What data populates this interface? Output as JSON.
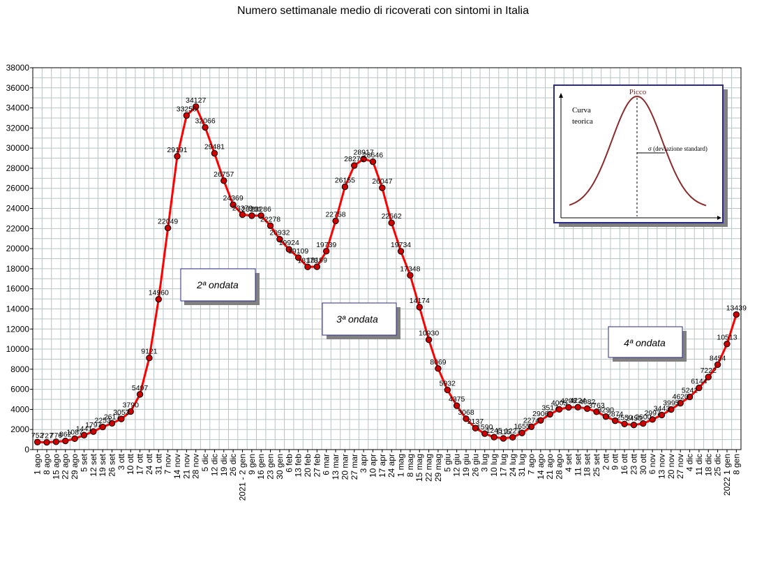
{
  "chart_data": {
    "type": "line",
    "title": "Numero settimanale medio di ricoverati con sintomi in Italia",
    "xlabel": "",
    "ylabel": "",
    "ylim": [
      0,
      38000
    ],
    "grid": true,
    "line_color": "#ff0000",
    "marker_color": "#cc0000",
    "categories": [
      "1 ago",
      "8 ago",
      "15 ago",
      "22 ago",
      "29 ago",
      "5 set",
      "12 set",
      "19 set",
      "26 set",
      "3 ott",
      "10 ott",
      "17 ott",
      "24 ott",
      "31 ott",
      "7 nov",
      "14 nov",
      "21 nov",
      "28 nov",
      "5 dic",
      "12 dic",
      "19 dic",
      "26 dic",
      "2021 - 2 gen",
      "9 gen",
      "16 gen",
      "23 gen",
      "30 gen",
      "6 feb",
      "13 feb",
      "20 feb",
      "27 feb",
      "6 mar",
      "13 mar",
      "20 mar",
      "27 mar",
      "3 apr",
      "10 apr",
      "17 apr",
      "24 apr",
      "1 mag",
      "8 mag",
      "15 mag",
      "22 mag",
      "29 mag",
      "5 giu",
      "12 giu",
      "19 giu",
      "26 giu",
      "3 lug",
      "10 lug",
      "17 lug",
      "24 lug",
      "31 lug",
      "7 ago",
      "14 ago",
      "21 ago",
      "28 ago",
      "4 set",
      "11 set",
      "18 set",
      "25 set",
      "2 ott",
      "9 ott",
      "16 ott",
      "23 ott",
      "30 ott",
      "6 nov",
      "13 nov",
      "20 nov",
      "27 nov",
      "4 dic",
      "11 dic",
      "18 dic",
      "25 dic",
      "2022 1 gen",
      "8 gen"
    ],
    "values": [
      752,
      727,
      776,
      862,
      1087,
      1441,
      1797,
      2253,
      2617,
      3053,
      3790,
      5497,
      9121,
      14960,
      22049,
      29191,
      33250,
      34127,
      32066,
      29481,
      26757,
      24369,
      23379,
      23281,
      23286,
      22278,
      20932,
      19924,
      19109,
      18178,
      18199,
      19739,
      22758,
      26155,
      28271,
      28917,
      28646,
      26047,
      22562,
      19734,
      17348,
      14174,
      10930,
      8069,
      5932,
      4375,
      3068,
      2137,
      1590,
      1245,
      1115,
      1227,
      1655,
      2274,
      2906,
      3517,
      4005,
      4208,
      4224,
      4082,
      3763,
      3290,
      2874,
      2550,
      2450,
      2600,
      2997,
      3443,
      3995,
      4620,
      5241,
      6144,
      7222,
      8454,
      10513,
      13439
    ],
    "point_labels": [
      "752",
      "727",
      "776",
      "862",
      "1087",
      "1441",
      "1797",
      "2253",
      "2617",
      "3053",
      "3790",
      "5497",
      "9121",
      "14960",
      "22049",
      "29191",
      "33250",
      "34127",
      "32066",
      "29481",
      "26757",
      "24369",
      "23379",
      "23281",
      "23286",
      "22278",
      "20932",
      "19924",
      "19109",
      "18178",
      "18199",
      "19739",
      "22758",
      "26155",
      "28271",
      "28917",
      "28646",
      "26047",
      "22562",
      "19734",
      "17348",
      "14174",
      "10930",
      "8069",
      "5932",
      "4375",
      "3068",
      "2137",
      "1590",
      "1245",
      "1115",
      "1227",
      "1655",
      "2274",
      "2906",
      "3517",
      "4005",
      "4208",
      "4224",
      "4082",
      "3763",
      "3290",
      "2874",
      "2550",
      "2450",
      "2600",
      "2997",
      "3443",
      "3995",
      "4620",
      "5241",
      "6144",
      "7222",
      "8454",
      "10513",
      "13439"
    ],
    "y_ticks": [
      "0",
      "2000",
      "4000",
      "6000",
      "8000",
      "10000",
      "12000",
      "14000",
      "16000",
      "18000",
      "20000",
      "22000",
      "24000",
      "26000",
      "28000",
      "30000",
      "32000",
      "34000",
      "36000",
      "38000"
    ],
    "annotations": {
      "wave2": "2ª ondata",
      "wave3": "3ª ondata",
      "wave4": "4ª ondata"
    },
    "inset": {
      "peak_label": "Picco",
      "curve_label_1": "Curva",
      "curve_label_2": "teorica",
      "sigma_label": "σ  (deviazione standard)",
      "curve_color": "#8b2a2a"
    }
  }
}
